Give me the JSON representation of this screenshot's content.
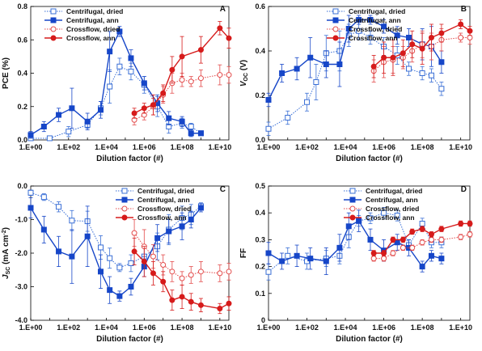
{
  "chart_data": [
    {
      "type": "line",
      "panel_label": "A",
      "xlabel": "Dilution factor (#)",
      "ylabel": "PCE (%)",
      "x_scale": "log",
      "xlim": [
        1,
        30000000000
      ],
      "ylim": [
        0,
        0.8
      ],
      "yticks": [
        "0.0",
        "0.2",
        "0.4",
        "0.6",
        "0.8"
      ],
      "xticks": [
        "1.E+00",
        "1.E+02",
        "1.E+04",
        "1.E+06",
        "1.E+08",
        "1.E+10"
      ],
      "legend_position": "top-left",
      "series": [
        {
          "name": "Centrifugal, dried",
          "color": "#3a6fd6",
          "marker": "square-open",
          "line": "dotted",
          "x": [
            1,
            10,
            100,
            1000,
            5000,
            15000,
            50000,
            200000,
            1000000,
            5000000,
            20000000,
            100000000,
            300000000,
            1000000000
          ],
          "y": [
            0.01,
            0.01,
            0.05,
            0.09,
            0.19,
            0.32,
            0.44,
            0.41,
            0.33,
            0.2,
            0.08,
            0.1,
            0.08,
            0.04
          ],
          "err": [
            0.01,
            0.01,
            0.03,
            0.02,
            0.04,
            0.1,
            0.05,
            0.05,
            0.05,
            0.06,
            0.04,
            0.03,
            0.02,
            0.01
          ]
        },
        {
          "name": "Centrifugal, ann",
          "color": "#1646c8",
          "marker": "square-filled",
          "line": "solid",
          "x": [
            1,
            5,
            30,
            150,
            1000,
            5000,
            15000,
            50000,
            200000,
            1000000,
            5000000,
            20000000,
            100000000,
            300000000,
            1000000000
          ],
          "y": [
            0.03,
            0.08,
            0.15,
            0.19,
            0.11,
            0.18,
            0.53,
            0.65,
            0.49,
            0.34,
            0.22,
            0.13,
            0.11,
            0.04,
            0.04
          ],
          "err": [
            0.02,
            0.03,
            0.04,
            0.12,
            0.05,
            0.05,
            0.12,
            0.03,
            0.05,
            0.04,
            0.05,
            0.04,
            0.03,
            0.02,
            0.01
          ]
        },
        {
          "name": "Crossflow, dried",
          "color": "#e34b4b",
          "marker": "circle-open",
          "line": "dotted",
          "x": [
            300000,
            1000000,
            3000000,
            10000000,
            30000000,
            100000000,
            300000000,
            1000000000,
            10000000000,
            30000000000
          ],
          "y": [
            0.12,
            0.15,
            0.2,
            0.27,
            0.34,
            0.36,
            0.35,
            0.37,
            0.39,
            0.39
          ],
          "err": [
            0.03,
            0.03,
            0.05,
            0.05,
            0.06,
            0.04,
            0.03,
            0.05,
            0.06,
            0.05
          ]
        },
        {
          "name": "Crossflow, ann",
          "color": "#d61b1b",
          "marker": "circle-filled",
          "line": "solid",
          "x": [
            300000,
            1000000,
            3000000,
            10000000,
            30000000,
            100000000,
            1000000000,
            10000000000,
            30000000000
          ],
          "y": [
            0.16,
            0.19,
            0.21,
            0.28,
            0.42,
            0.5,
            0.54,
            0.67,
            0.61
          ],
          "err": [
            0.03,
            0.03,
            0.06,
            0.05,
            0.08,
            0.12,
            0.08,
            0.04,
            0.06
          ]
        }
      ]
    },
    {
      "type": "line",
      "panel_label": "B",
      "xlabel": "Dilution factor (#)",
      "ylabel": "V_OC (V)",
      "ylabel_main": "V",
      "ylabel_sub": "OC",
      "ylabel_tail": "(V)",
      "x_scale": "log",
      "xlim": [
        1,
        30000000000
      ],
      "ylim": [
        0,
        0.6
      ],
      "yticks": [
        "0.0",
        "0.2",
        "0.4",
        "0.6"
      ],
      "xticks": [
        "1.E+00",
        "1.E+02",
        "1.E+04",
        "1.E+06",
        "1.E+08",
        "1.E+10"
      ],
      "legend_position": "top-right",
      "series": [
        {
          "name": "Centrifugal, dried",
          "color": "#3a6fd6",
          "marker": "square-open",
          "line": "dotted",
          "x": [
            1,
            10,
            100,
            300,
            1000,
            5000,
            15000,
            50000,
            200000,
            1000000,
            5000000,
            20000000,
            100000000,
            300000000,
            1000000000
          ],
          "y": [
            0.05,
            0.1,
            0.17,
            0.26,
            0.39,
            0.4,
            0.47,
            0.49,
            0.46,
            0.42,
            0.38,
            0.32,
            0.3,
            0.29,
            0.23
          ],
          "err": [
            0.03,
            0.03,
            0.04,
            0.08,
            0.08,
            0.09,
            0.05,
            0.04,
            0.03,
            0.04,
            0.04,
            0.03,
            0.03,
            0.03,
            0.03
          ]
        },
        {
          "name": "Centrifugal, ann",
          "color": "#1646c8",
          "marker": "square-filled",
          "line": "solid",
          "x": [
            1,
            5,
            30,
            150,
            1000,
            5000,
            15000,
            50000,
            200000,
            1000000,
            5000000,
            20000000,
            100000000,
            300000000,
            1000000000
          ],
          "y": [
            0.18,
            0.3,
            0.32,
            0.37,
            0.34,
            0.34,
            0.5,
            0.54,
            0.54,
            0.51,
            0.47,
            0.46,
            0.43,
            0.42,
            0.35
          ],
          "err": [
            0.03,
            0.04,
            0.05,
            0.09,
            0.06,
            0.1,
            0.06,
            0.02,
            0.02,
            0.03,
            0.04,
            0.04,
            0.07,
            0.09,
            0.05
          ]
        },
        {
          "name": "Crossflow, dried",
          "color": "#e34b4b",
          "marker": "circle-open",
          "line": "dotted",
          "x": [
            300000,
            1000000,
            3000000,
            10000000,
            30000000,
            100000000,
            300000000,
            1000000000,
            10000000000,
            30000000000
          ],
          "y": [
            0.31,
            0.35,
            0.36,
            0.37,
            0.4,
            0.43,
            0.42,
            0.45,
            0.46,
            0.46
          ],
          "err": [
            0.05,
            0.07,
            0.06,
            0.05,
            0.05,
            0.06,
            0.06,
            0.05,
            0.02,
            0.03
          ]
        },
        {
          "name": "Crossflow, ann",
          "color": "#d61b1b",
          "marker": "circle-filled",
          "line": "solid",
          "x": [
            300000,
            1000000,
            3000000,
            10000000,
            30000000,
            100000000,
            300000000,
            1000000000,
            10000000000,
            30000000000
          ],
          "y": [
            0.33,
            0.37,
            0.37,
            0.39,
            0.43,
            0.41,
            0.46,
            0.48,
            0.52,
            0.49
          ],
          "err": [
            0.05,
            0.07,
            0.08,
            0.06,
            0.06,
            0.07,
            0.06,
            0.04,
            0.02,
            0.02
          ]
        }
      ]
    },
    {
      "type": "line",
      "panel_label": "C",
      "xlabel": "Dilution factor (#)",
      "ylabel": "J_SC (mA cm^-2)",
      "ylabel_main": "J",
      "ylabel_sub": "SC",
      "ylabel_tail": "(mA cm",
      "ylabel_sup": "-2",
      "ylabel_close": ")",
      "x_scale": "log",
      "xlim": [
        1,
        30000000000
      ],
      "ylim": [
        -4,
        0
      ],
      "yticks": [
        "0.0",
        "-1.0",
        "-2.0",
        "-3.0",
        "-4.0"
      ],
      "xticks": [
        "1.E+00",
        "1.E+02",
        "1.E+04",
        "1.E+06",
        "1.E+08",
        "1.E+10"
      ],
      "legend_position": "top-right",
      "series": [
        {
          "name": "Centrifugal, dried",
          "color": "#3a6fd6",
          "marker": "square-open",
          "line": "dotted",
          "x": [
            1,
            5,
            30,
            150,
            1000,
            5000,
            15000,
            50000,
            200000,
            1000000,
            5000000,
            20000000,
            100000000,
            300000000,
            1000000000
          ],
          "y": [
            -0.2,
            -0.33,
            -0.62,
            -1.03,
            -1.05,
            -1.83,
            -2.15,
            -2.43,
            -2.3,
            -2.1,
            -1.8,
            -1.3,
            -0.95,
            -0.85,
            -0.6
          ],
          "err": [
            0.08,
            0.1,
            0.15,
            0.3,
            0.3,
            0.35,
            0.3,
            0.12,
            0.25,
            0.3,
            0.4,
            0.45,
            0.35,
            0.3,
            0.1
          ]
        },
        {
          "name": "Centrifugal, ann",
          "color": "#1646c8",
          "marker": "square-filled",
          "line": "solid",
          "x": [
            1,
            5,
            30,
            150,
            1000,
            5000,
            15000,
            50000,
            200000,
            1000000,
            5000000,
            20000000,
            100000000,
            300000000,
            1000000000
          ],
          "y": [
            -0.65,
            -1.3,
            -1.95,
            -2.1,
            -1.5,
            -2.55,
            -3.1,
            -3.28,
            -3.0,
            -2.4,
            -1.55,
            -1.35,
            -1.2,
            -1.0,
            -0.65
          ],
          "err": [
            0.3,
            0.4,
            0.45,
            0.8,
            0.9,
            0.5,
            0.4,
            0.15,
            0.25,
            0.3,
            0.4,
            0.35,
            0.4,
            0.25,
            0.12
          ]
        },
        {
          "name": "Crossflow, dried",
          "color": "#e34b4b",
          "marker": "circle-open",
          "line": "dotted",
          "x": [
            300000,
            1000000,
            3000000,
            10000000,
            30000000,
            100000000,
            300000000,
            1000000000,
            10000000000,
            30000000000
          ],
          "y": [
            -1.4,
            -1.8,
            -2.1,
            -2.35,
            -2.55,
            -2.75,
            -2.65,
            -2.55,
            -2.6,
            -2.55
          ],
          "err": [
            0.4,
            0.5,
            0.35,
            0.3,
            0.3,
            0.2,
            0.25,
            0.3,
            0.25,
            0.25
          ]
        },
        {
          "name": "Crossflow, ann",
          "color": "#d61b1b",
          "marker": "circle-filled",
          "line": "solid",
          "x": [
            300000,
            1000000,
            3000000,
            10000000,
            30000000,
            100000000,
            300000000,
            1000000000,
            10000000000,
            30000000000
          ],
          "y": [
            -1.95,
            -2.25,
            -2.6,
            -2.85,
            -3.4,
            -3.3,
            -3.45,
            -3.55,
            -3.65,
            -3.5
          ],
          "err": [
            0.4,
            0.45,
            0.35,
            0.3,
            0.3,
            0.35,
            0.25,
            0.2,
            0.15,
            0.2
          ]
        }
      ]
    },
    {
      "type": "line",
      "panel_label": "D",
      "xlabel": "Dilution factor (#)",
      "ylabel": "FF",
      "x_scale": "log",
      "xlim": [
        1,
        30000000000
      ],
      "ylim": [
        0,
        0.5
      ],
      "yticks": [
        "0",
        "0.1",
        "0.2",
        "0.3",
        "0.4",
        "0.5"
      ],
      "xticks": [
        "1.E+00",
        "1.E+02",
        "1.E+04",
        "1.E+06",
        "1.E+08",
        "1.E+10"
      ],
      "legend_position": "top-right",
      "series": [
        {
          "name": "Centrifugal, dried",
          "color": "#3a6fd6",
          "marker": "square-open",
          "line": "dotted",
          "x": [
            1,
            10,
            100,
            1000,
            5000,
            15000,
            50000,
            200000,
            1000000,
            5000000,
            20000000,
            100000000,
            300000000,
            1000000000
          ],
          "y": [
            0.18,
            0.24,
            0.22,
            0.23,
            0.24,
            0.31,
            0.37,
            0.38,
            0.4,
            0.39,
            0.28,
            0.36,
            0.29,
            0.29
          ],
          "err": [
            0.03,
            0.03,
            0.03,
            0.03,
            0.03,
            0.04,
            0.02,
            0.02,
            0.02,
            0.02,
            0.02,
            0.02,
            0.02,
            0.02
          ]
        },
        {
          "name": "Centrifugal, ann",
          "color": "#1646c8",
          "marker": "square-filled",
          "line": "solid",
          "x": [
            1,
            5,
            30,
            150,
            1000,
            5000,
            15000,
            50000,
            200000,
            1000000,
            5000000,
            20000000,
            100000000,
            300000000,
            1000000000
          ],
          "y": [
            0.25,
            0.22,
            0.24,
            0.23,
            0.22,
            0.27,
            0.35,
            0.37,
            0.3,
            0.26,
            0.29,
            0.27,
            0.2,
            0.24,
            0.23
          ],
          "err": [
            0.04,
            0.03,
            0.04,
            0.04,
            0.05,
            0.05,
            0.05,
            0.04,
            0.04,
            0.04,
            0.03,
            0.03,
            0.02,
            0.02,
            0.02
          ]
        },
        {
          "name": "Crossflow, dried",
          "color": "#e34b4b",
          "marker": "circle-open",
          "line": "dotted",
          "x": [
            300000,
            1000000,
            3000000,
            10000000,
            30000000,
            100000000,
            300000000,
            1000000000,
            10000000000,
            30000000000
          ],
          "y": [
            0.23,
            0.23,
            0.25,
            0.27,
            0.27,
            0.29,
            0.3,
            0.3,
            0.31,
            0.32
          ],
          "err": [
            0.01,
            0.01,
            0.01,
            0.01,
            0.01,
            0.01,
            0.01,
            0.01,
            0.01,
            0.01
          ]
        },
        {
          "name": "Crossflow, ann",
          "color": "#d61b1b",
          "marker": "circle-filled",
          "line": "solid",
          "x": [
            300000,
            1000000,
            3000000,
            10000000,
            30000000,
            100000000,
            300000000,
            1000000000,
            10000000000,
            30000000000
          ],
          "y": [
            0.25,
            0.25,
            0.3,
            0.3,
            0.33,
            0.34,
            0.32,
            0.34,
            0.36,
            0.36
          ],
          "err": [
            0.01,
            0.01,
            0.01,
            0.01,
            0.01,
            0.01,
            0.01,
            0.01,
            0.01,
            0.01
          ]
        }
      ]
    }
  ]
}
